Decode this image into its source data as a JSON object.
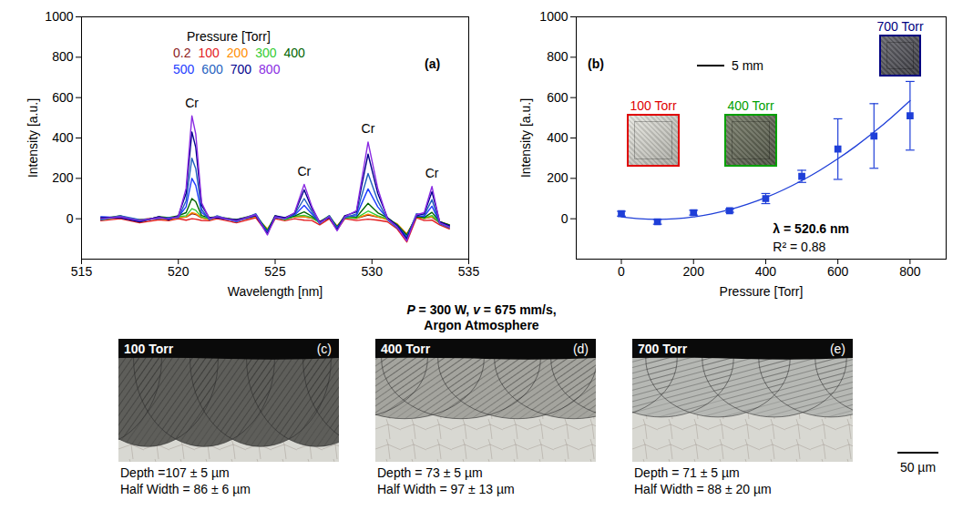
{
  "chart_data": [
    {
      "type": "line",
      "panel": "(a)",
      "xlabel": "Wavelength [nm]",
      "ylabel": "Intensity [a.u.]",
      "xlim": [
        515,
        535
      ],
      "xticks": [
        515,
        520,
        525,
        530,
        535
      ],
      "ylim": [
        -200,
        1000
      ],
      "yticks": [
        0,
        200,
        400,
        600,
        800,
        1000
      ],
      "legend": "top",
      "legend_title": "Pressure [Torr]",
      "x": [
        516,
        517,
        518,
        519,
        519.5,
        520,
        520.4,
        520.7,
        520.9,
        521.2,
        521.6,
        522,
        523,
        524,
        524.6,
        525,
        525.5,
        526,
        526.5,
        526.9,
        527.3,
        527.8,
        528.2,
        528.6,
        529.2,
        529.8,
        530.3,
        530.8,
        531.3,
        531.8,
        532.3,
        532.7,
        533.1,
        533.5,
        534
      ],
      "series": [
        {
          "name": "0.2",
          "color": "#8b1a1a",
          "values": [
            0,
            5,
            -5,
            5,
            0,
            5,
            8,
            25,
            21,
            4,
            0,
            5,
            -10,
            10,
            -60,
            5,
            0,
            11,
            9,
            3,
            -15,
            5,
            -45,
            5,
            2,
            19,
            8,
            0,
            -30,
            -90,
            10,
            2,
            8,
            -20,
            -40
          ]
        },
        {
          "name": "100",
          "color": "#e31a1c",
          "values": [
            -10,
            0,
            -20,
            -5,
            -10,
            0,
            -7,
            0,
            -2,
            -8,
            -10,
            0,
            -20,
            5,
            -70,
            0,
            -10,
            0,
            -7,
            -9,
            -30,
            0,
            -55,
            0,
            -9,
            -2,
            -7,
            -15,
            -50,
            -115,
            5,
            -9,
            -7,
            -30,
            -50
          ]
        },
        {
          "name": "200",
          "color": "#ff8c00",
          "values": [
            5,
            5,
            -5,
            0,
            -5,
            5,
            9,
            30,
            25,
            5,
            -5,
            5,
            -5,
            10,
            -50,
            5,
            0,
            11,
            10,
            4,
            -15,
            5,
            -35,
            10,
            2,
            23,
            9,
            -5,
            -25,
            -75,
            10,
            2,
            10,
            -15,
            -30
          ]
        },
        {
          "name": "300",
          "color": "#33cc33",
          "values": [
            -5,
            10,
            -10,
            5,
            0,
            10,
            15,
            50,
            42,
            8,
            0,
            10,
            -10,
            15,
            -55,
            10,
            -5,
            12,
            17,
            6,
            -20,
            10,
            -40,
            5,
            4,
            38,
            15,
            0,
            -30,
            -85,
            15,
            3,
            16,
            -20,
            -35
          ]
        },
        {
          "name": "400",
          "color": "#006400",
          "values": [
            0,
            15,
            -15,
            10,
            5,
            15,
            30,
            100,
            84,
            16,
            5,
            10,
            -5,
            20,
            -60,
            15,
            0,
            14,
            34,
            12,
            -15,
            15,
            -40,
            15,
            8,
            76,
            30,
            5,
            -30,
            -80,
            10,
            6,
            32,
            -15,
            -30
          ]
        },
        {
          "name": "500",
          "color": "#1e3cff",
          "values": [
            10,
            5,
            -10,
            5,
            0,
            10,
            59,
            200,
            165,
            31,
            0,
            5,
            -10,
            15,
            -65,
            10,
            5,
            18,
            66,
            23,
            -20,
            10,
            -45,
            10,
            16,
            148,
            59,
            0,
            -35,
            -90,
            15,
            12,
            62,
            -20,
            -35
          ]
        },
        {
          "name": "600",
          "color": "#1f5fbf",
          "values": [
            -5,
            15,
            -5,
            0,
            5,
            5,
            89,
            300,
            248,
            47,
            -5,
            15,
            -15,
            25,
            -70,
            5,
            0,
            22,
            100,
            35,
            -25,
            15,
            -50,
            5,
            24,
            224,
            89,
            -5,
            -45,
            -95,
            25,
            18,
            94,
            -25,
            -45
          ]
        },
        {
          "name": "700",
          "color": "#00008b",
          "values": [
            5,
            5,
            -15,
            10,
            -5,
            15,
            126,
            430,
            353,
            67,
            5,
            5,
            -5,
            15,
            -75,
            15,
            5,
            27,
            143,
            50,
            -15,
            5,
            -55,
            15,
            34,
            320,
            126,
            5,
            -35,
            -100,
            15,
            25,
            134,
            -15,
            -35
          ]
        },
        {
          "name": "800",
          "color": "#8a2be2",
          "values": [
            0,
            10,
            -10,
            5,
            0,
            10,
            150,
            510,
            420,
            80,
            0,
            10,
            -10,
            20,
            -80,
            10,
            0,
            30,
            170,
            60,
            -20,
            10,
            -60,
            10,
            40,
            380,
            150,
            0,
            -40,
            -110,
            20,
            30,
            160,
            -20,
            -40
          ]
        }
      ],
      "annotations": [
        {
          "text": "Cr",
          "x": 520.7,
          "y": 570
        },
        {
          "text": "Cr",
          "x": 526.5,
          "y": 235
        },
        {
          "text": "Cr",
          "x": 529.8,
          "y": 445
        },
        {
          "text": "Cr",
          "x": 533.1,
          "y": 225
        }
      ]
    },
    {
      "type": "scatter",
      "panel": "(b)",
      "xlabel": "Pressure [Torr]",
      "ylabel": "Intensity [a.u.]",
      "xlim": [
        -125,
        900
      ],
      "xticks": [
        0,
        200,
        400,
        600,
        800
      ],
      "ylim": [
        -200,
        1000
      ],
      "yticks": [
        0,
        200,
        400,
        600,
        800,
        1000
      ],
      "color": "#1f3fd8",
      "marker": "square",
      "x": [
        0,
        100,
        200,
        300,
        400,
        500,
        600,
        700,
        800
      ],
      "values": [
        25,
        -15,
        30,
        40,
        100,
        210,
        345,
        410,
        510
      ],
      "errors": [
        12,
        12,
        12,
        8,
        25,
        30,
        150,
        160,
        170
      ],
      "fit": {
        "x": [
          0,
          50,
          100,
          150,
          200,
          250,
          300,
          350,
          400,
          450,
          500,
          550,
          600,
          650,
          700,
          750,
          800
        ],
        "values": [
          9,
          0,
          -3,
          0,
          9,
          24,
          45,
          72,
          105,
          144,
          189,
          240,
          297,
          360,
          429,
          504,
          585
        ]
      },
      "annotations": [
        {
          "text": "λ = 520.6 nm",
          "x": 420,
          "y": -50
        },
        {
          "text": "R² = 0.88",
          "x": 420,
          "y": -140
        }
      ],
      "insets": [
        {
          "label": "100 Torr",
          "color": "#e00000"
        },
        {
          "label": "400 Torr",
          "color": "#00a000"
        },
        {
          "label": "700 Torr",
          "color": "#000080"
        }
      ],
      "scale_bar": {
        "label": "5 mm",
        "value": 5
      }
    }
  ],
  "conditions": [
    "P = 300 W, v = 675 mm/s,",
    "Argon Atmosphere"
  ],
  "micrographs": [
    {
      "label": "100 Torr",
      "panel": "(c)",
      "depth_text": "Depth =107 ± 5 µm",
      "half_width_text": "Half Width = 86 ± 6 µm",
      "depth": 107,
      "half_width": 86
    },
    {
      "label": "400 Torr",
      "panel": "(d)",
      "depth_text": "Depth = 73 ± 5 µm",
      "half_width_text": "Half Width = 97 ± 13 µm",
      "depth": 73,
      "half_width": 97
    },
    {
      "label": "700 Torr",
      "panel": "(e)",
      "depth_text": "Depth = 71 ± 5 µm",
      "half_width_text": "Half Width = 88 ± 20 µm",
      "depth": 71,
      "half_width": 88
    }
  ],
  "micrograph_scale_bar": {
    "label": "50 µm",
    "value": 50
  }
}
